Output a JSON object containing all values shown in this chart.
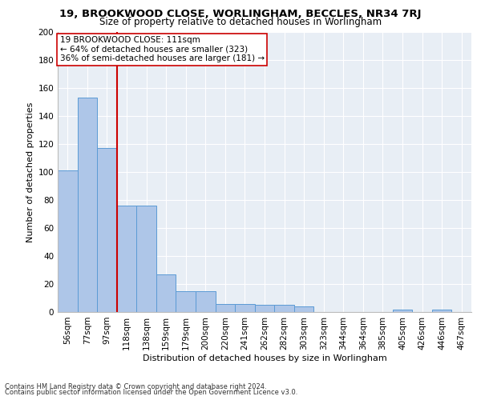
{
  "title1": "19, BROOKWOOD CLOSE, WORLINGHAM, BECCLES, NR34 7RJ",
  "title2": "Size of property relative to detached houses in Worlingham",
  "xlabel": "Distribution of detached houses by size in Worlingham",
  "ylabel": "Number of detached properties",
  "categories": [
    "56sqm",
    "77sqm",
    "97sqm",
    "118sqm",
    "138sqm",
    "159sqm",
    "179sqm",
    "200sqm",
    "220sqm",
    "241sqm",
    "262sqm",
    "282sqm",
    "303sqm",
    "323sqm",
    "344sqm",
    "364sqm",
    "385sqm",
    "405sqm",
    "426sqm",
    "446sqm",
    "467sqm"
  ],
  "values": [
    101,
    153,
    117,
    76,
    76,
    27,
    15,
    15,
    6,
    6,
    5,
    5,
    4,
    0,
    0,
    0,
    0,
    2,
    0,
    2,
    0
  ],
  "bar_color": "#aec6e8",
  "bar_edge_color": "#5b9bd5",
  "vline_x": 2.5,
  "vline_color": "#cc0000",
  "annotation_text": "19 BROOKWOOD CLOSE: 111sqm\n← 64% of detached houses are smaller (323)\n36% of semi-detached houses are larger (181) →",
  "annotation_box_color": "#ffffff",
  "annotation_box_edge": "#cc0000",
  "ylim": [
    0,
    200
  ],
  "yticks": [
    0,
    20,
    40,
    60,
    80,
    100,
    120,
    140,
    160,
    180,
    200
  ],
  "footer1": "Contains HM Land Registry data © Crown copyright and database right 2024.",
  "footer2": "Contains public sector information licensed under the Open Government Licence v3.0.",
  "bg_color": "#e8eef5",
  "fig_bg_color": "#ffffff",
  "title1_fontsize": 9.5,
  "title2_fontsize": 8.5,
  "xlabel_fontsize": 8,
  "ylabel_fontsize": 8,
  "footer_fontsize": 6,
  "tick_fontsize": 7.5,
  "annot_fontsize": 7.5
}
